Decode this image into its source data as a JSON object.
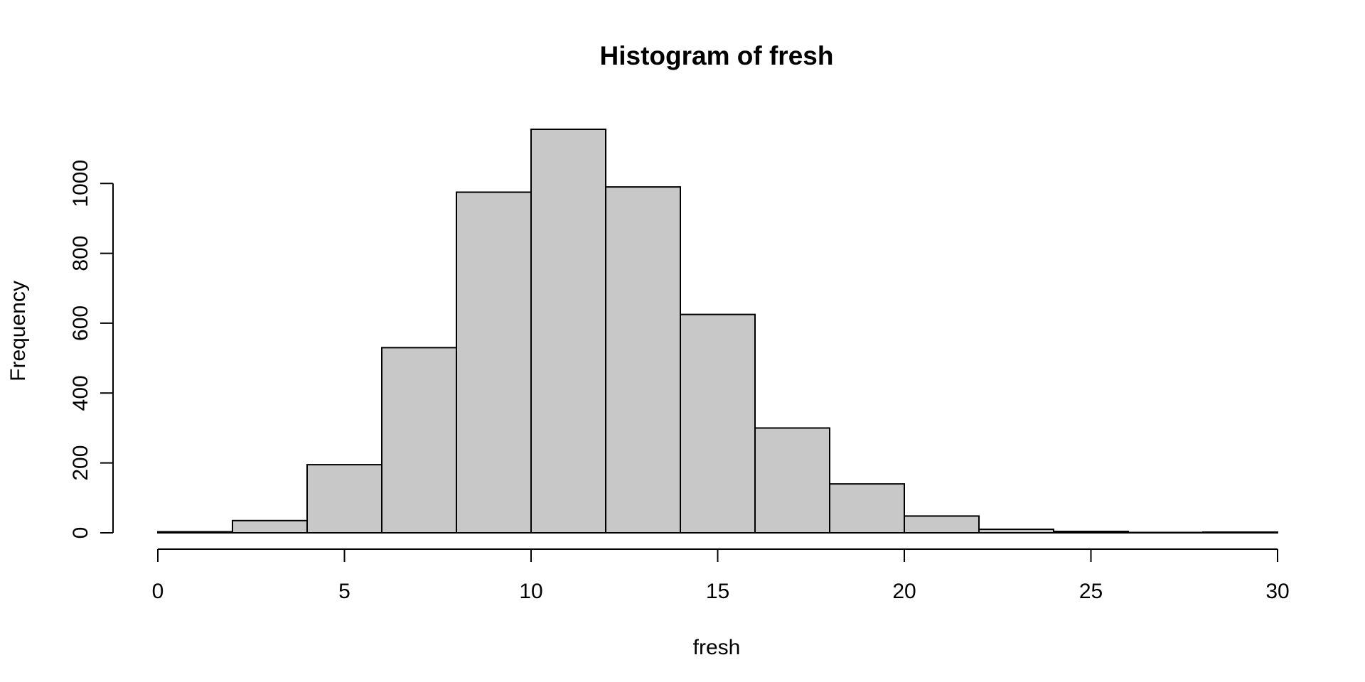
{
  "chart_data": {
    "type": "bar",
    "title": "Histogram of fresh",
    "xlabel": "fresh",
    "ylabel": "Frequency",
    "bins": [
      {
        "from": 0,
        "to": 2,
        "count": 3
      },
      {
        "from": 2,
        "to": 4,
        "count": 35
      },
      {
        "from": 4,
        "to": 6,
        "count": 195
      },
      {
        "from": 6,
        "to": 8,
        "count": 530
      },
      {
        "from": 8,
        "to": 10,
        "count": 975
      },
      {
        "from": 10,
        "to": 12,
        "count": 1155
      },
      {
        "from": 12,
        "to": 14,
        "count": 990
      },
      {
        "from": 14,
        "to": 16,
        "count": 625
      },
      {
        "from": 16,
        "to": 18,
        "count": 300
      },
      {
        "from": 18,
        "to": 20,
        "count": 140
      },
      {
        "from": 20,
        "to": 22,
        "count": 48
      },
      {
        "from": 22,
        "to": 24,
        "count": 10
      },
      {
        "from": 24,
        "to": 26,
        "count": 4
      },
      {
        "from": 26,
        "to": 28,
        "count": 1
      },
      {
        "from": 28,
        "to": 30,
        "count": 2
      }
    ],
    "xlim": [
      0,
      30
    ],
    "ylim": [
      0,
      1155
    ],
    "x_ticks": [
      "0",
      "5",
      "10",
      "15",
      "20",
      "25",
      "30"
    ],
    "y_ticks": [
      "0",
      "200",
      "400",
      "600",
      "800",
      "1000"
    ],
    "bar_color": "#c8c8c8",
    "edge_color": "#000000",
    "grid": false,
    "legend": "none"
  }
}
